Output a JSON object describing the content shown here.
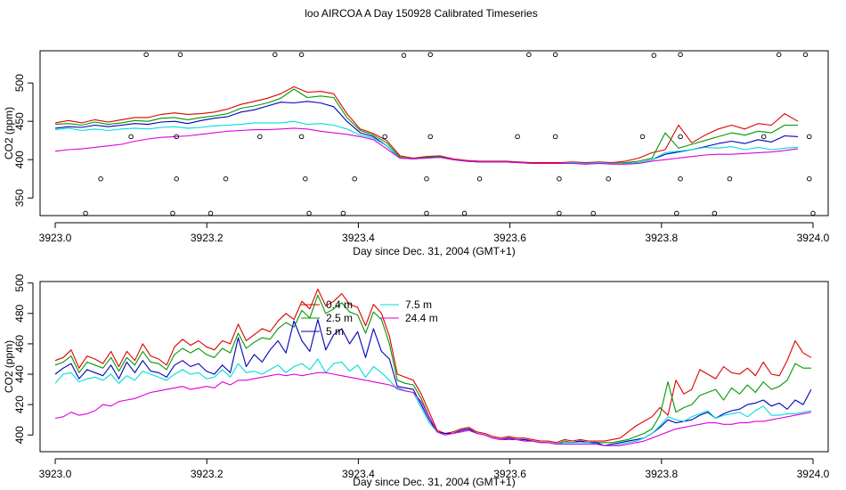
{
  "figure": {
    "title": "loo AIRCOA A  Day 150928  Calibrated Timeseries"
  },
  "chart_data": [
    {
      "type": "line",
      "xlabel": "Day since Dec. 31, 2004 (GMT+1)",
      "ylabel": "CO2 (ppm)",
      "xlim": [
        3922.98,
        3924.02
      ],
      "ylim": [
        327,
        542
      ],
      "xticks": [
        "3923.0",
        "3923.2",
        "3923.4",
        "3923.6",
        "3923.8",
        "3924.0"
      ],
      "xtick_values": [
        3923.0,
        3923.2,
        3923.4,
        3923.6,
        3923.8,
        3924.0
      ],
      "yticks": [
        "350",
        "400",
        "450",
        "500"
      ],
      "ytick_values": [
        350,
        400,
        450,
        500
      ],
      "grid": false,
      "legend": "none",
      "colors": [
        "#dd0000",
        "#009900",
        "#0000bb",
        "#00dddd",
        "#dd00dd"
      ],
      "series": [
        {
          "values": [
            448,
            451,
            448,
            452,
            449,
            452,
            455,
            455,
            459,
            461,
            459,
            460,
            462,
            466,
            472,
            476,
            480,
            486,
            495,
            488,
            489,
            486,
            460,
            440,
            434,
            425,
            405,
            402,
            404,
            405,
            401,
            399,
            398,
            398,
            398,
            397,
            396,
            396,
            396,
            397,
            396,
            397,
            396,
            398,
            402,
            409,
            413,
            445,
            422,
            432,
            440,
            445,
            440,
            447,
            445,
            460,
            450
          ]
        },
        {
          "values": [
            446,
            447,
            445,
            449,
            446,
            448,
            451,
            450,
            454,
            455,
            452,
            455,
            457,
            460,
            467,
            470,
            474,
            480,
            492,
            481,
            483,
            481,
            455,
            438,
            432,
            422,
            403,
            401,
            403,
            404,
            400,
            398,
            397,
            397,
            397,
            396,
            395,
            395,
            395,
            396,
            395,
            396,
            395,
            396,
            398,
            402,
            435,
            415,
            420,
            425,
            430,
            435,
            432,
            437,
            435,
            445,
            445
          ]
        },
        {
          "values": [
            441,
            443,
            442,
            445,
            443,
            445,
            447,
            446,
            449,
            450,
            447,
            451,
            454,
            456,
            462,
            465,
            470,
            475,
            474,
            476,
            474,
            469,
            450,
            435,
            430,
            418,
            402,
            401,
            402,
            403,
            400,
            398,
            397,
            397,
            397,
            396,
            395,
            395,
            395,
            396,
            395,
            396,
            395,
            395,
            396,
            400,
            407,
            410,
            413,
            417,
            421,
            424,
            421,
            426,
            423,
            431,
            430
          ]
        },
        {
          "values": [
            439,
            441,
            438,
            440,
            438,
            440,
            441,
            440,
            442,
            443,
            441,
            442,
            444,
            445,
            446,
            448,
            448,
            448,
            450,
            446,
            447,
            445,
            440,
            432,
            428,
            418,
            402,
            401,
            402,
            403,
            400,
            398,
            397,
            397,
            397,
            396,
            395,
            395,
            395,
            396,
            395,
            396,
            395,
            395,
            396,
            400,
            409,
            411,
            413,
            416,
            415,
            417,
            413,
            416,
            413,
            415,
            416
          ]
        },
        {
          "values": [
            411,
            413,
            414,
            416,
            418,
            420,
            424,
            427,
            429,
            430,
            431,
            433,
            435,
            437,
            438,
            439,
            439,
            440,
            441,
            440,
            437,
            435,
            433,
            430,
            426,
            414,
            402,
            401,
            402,
            403,
            400,
            398,
            397,
            397,
            397,
            396,
            395,
            395,
            395,
            395,
            394,
            395,
            394,
            394,
            395,
            398,
            400,
            402,
            404,
            406,
            407,
            407,
            408,
            409,
            410,
            412,
            414
          ]
        }
      ],
      "x_start": 3923.0,
      "x_step": 0.0175,
      "markers": [
        {
          "x": 3923.04,
          "y": 330
        },
        {
          "x": 3923.06,
          "y": 375
        },
        {
          "x": 3923.1,
          "y": 430
        },
        {
          "x": 3923.12,
          "y": 537
        },
        {
          "x": 3923.155,
          "y": 330
        },
        {
          "x": 3923.16,
          "y": 375
        },
        {
          "x": 3923.16,
          "y": 430
        },
        {
          "x": 3923.165,
          "y": 537
        },
        {
          "x": 3923.205,
          "y": 330
        },
        {
          "x": 3923.225,
          "y": 375
        },
        {
          "x": 3923.27,
          "y": 430
        },
        {
          "x": 3923.29,
          "y": 537
        },
        {
          "x": 3923.325,
          "y": 537
        },
        {
          "x": 3923.325,
          "y": 430
        },
        {
          "x": 3923.33,
          "y": 375
        },
        {
          "x": 3923.335,
          "y": 330
        },
        {
          "x": 3923.38,
          "y": 330
        },
        {
          "x": 3923.395,
          "y": 375
        },
        {
          "x": 3923.435,
          "y": 430
        },
        {
          "x": 3923.46,
          "y": 536
        },
        {
          "x": 3923.495,
          "y": 537
        },
        {
          "x": 3923.49,
          "y": 375
        },
        {
          "x": 3923.495,
          "y": 430
        },
        {
          "x": 3923.49,
          "y": 330
        },
        {
          "x": 3923.54,
          "y": 330
        },
        {
          "x": 3923.56,
          "y": 375
        },
        {
          "x": 3923.61,
          "y": 430
        },
        {
          "x": 3923.625,
          "y": 537
        },
        {
          "x": 3923.66,
          "y": 537
        },
        {
          "x": 3923.66,
          "y": 430
        },
        {
          "x": 3923.665,
          "y": 375
        },
        {
          "x": 3923.665,
          "y": 330
        },
        {
          "x": 3923.71,
          "y": 330
        },
        {
          "x": 3923.73,
          "y": 375
        },
        {
          "x": 3923.775,
          "y": 430
        },
        {
          "x": 3923.79,
          "y": 536
        },
        {
          "x": 3923.825,
          "y": 537
        },
        {
          "x": 3923.825,
          "y": 430
        },
        {
          "x": 3923.825,
          "y": 375
        },
        {
          "x": 3923.82,
          "y": 330
        },
        {
          "x": 3923.87,
          "y": 330
        },
        {
          "x": 3923.89,
          "y": 375
        },
        {
          "x": 3923.935,
          "y": 430
        },
        {
          "x": 3923.955,
          "y": 537
        },
        {
          "x": 3923.99,
          "y": 537
        },
        {
          "x": 3923.995,
          "y": 430
        },
        {
          "x": 3923.995,
          "y": 375
        },
        {
          "x": 3924.0,
          "y": 330
        }
      ]
    },
    {
      "type": "line",
      "xlabel": "Day since Dec. 31, 2004 (GMT+1)",
      "ylabel": "CO2 (ppm)",
      "xlim": [
        3922.98,
        3924.02
      ],
      "ylim": [
        389,
        501
      ],
      "xticks": [
        "3923.0",
        "3923.2",
        "3923.4",
        "3923.6",
        "3923.8",
        "3924.0"
      ],
      "xtick_values": [
        3923.0,
        3923.2,
        3923.4,
        3923.6,
        3923.8,
        3924.0
      ],
      "yticks": [
        "400",
        "420",
        "440",
        "460",
        "480",
        "500"
      ],
      "ytick_values": [
        400,
        420,
        440,
        460,
        480,
        500
      ],
      "grid": false,
      "legend": "top-center",
      "colors": [
        "#dd0000",
        "#009900",
        "#0000bb",
        "#00dddd",
        "#dd00dd"
      ],
      "series": [
        {
          "name": "0.4 m",
          "values": [
            449,
            451,
            456,
            444,
            452,
            450,
            447,
            455,
            445,
            455,
            449,
            460,
            452,
            450,
            446,
            458,
            463,
            459,
            462,
            458,
            456,
            462,
            460,
            473,
            462,
            466,
            470,
            468,
            475,
            480,
            476,
            488,
            483,
            496,
            485,
            488,
            493,
            486,
            484,
            472,
            486,
            480,
            465,
            440,
            438,
            436,
            427,
            415,
            403,
            401,
            402,
            404,
            405,
            402,
            401,
            399,
            398,
            399,
            398,
            398,
            397,
            396,
            396,
            395,
            397,
            396,
            397,
            396,
            396,
            396,
            397,
            398,
            402,
            406,
            409,
            412,
            418,
            413,
            436,
            427,
            430,
            443,
            440,
            437,
            445,
            441,
            440,
            444,
            439,
            448,
            440,
            439,
            449,
            462,
            454,
            451
          ]
        },
        {
          "name": "2.5 m",
          "values": [
            446,
            448,
            452,
            441,
            448,
            446,
            444,
            451,
            442,
            451,
            446,
            455,
            448,
            447,
            443,
            453,
            457,
            454,
            457,
            453,
            451,
            457,
            454,
            467,
            457,
            461,
            464,
            463,
            470,
            474,
            471,
            482,
            477,
            492,
            480,
            483,
            487,
            481,
            479,
            467,
            481,
            476,
            460,
            436,
            434,
            433,
            424,
            412,
            402,
            401,
            401,
            403,
            404,
            401,
            400,
            398,
            397,
            398,
            397,
            397,
            396,
            395,
            395,
            394,
            396,
            395,
            396,
            395,
            395,
            395,
            395,
            396,
            397,
            399,
            401,
            404,
            413,
            435,
            415,
            418,
            420,
            426,
            428,
            430,
            423,
            431,
            427,
            433,
            428,
            435,
            430,
            432,
            436,
            447,
            444,
            444
          ]
        },
        {
          "name": "5 m",
          "values": [
            440,
            444,
            447,
            437,
            443,
            441,
            439,
            446,
            437,
            448,
            441,
            449,
            442,
            441,
            438,
            446,
            449,
            445,
            447,
            442,
            440,
            446,
            441,
            464,
            445,
            453,
            448,
            456,
            462,
            454,
            475,
            462,
            455,
            476,
            456,
            466,
            470,
            460,
            468,
            451,
            470,
            455,
            450,
            432,
            431,
            430,
            420,
            410,
            402,
            401,
            401,
            403,
            404,
            401,
            400,
            398,
            397,
            398,
            397,
            397,
            396,
            395,
            395,
            394,
            395,
            395,
            396,
            395,
            395,
            393,
            394,
            395,
            396,
            397,
            398,
            401,
            405,
            410,
            408,
            409,
            410,
            413,
            415,
            411,
            414,
            416,
            417,
            420,
            421,
            423,
            419,
            421,
            417,
            423,
            420,
            430
          ]
        },
        {
          "name": "7.5 m",
          "values": [
            434,
            440,
            441,
            435,
            437,
            438,
            436,
            440,
            434,
            439,
            436,
            442,
            440,
            438,
            436,
            440,
            443,
            440,
            441,
            437,
            438,
            443,
            438,
            447,
            441,
            442,
            440,
            443,
            446,
            441,
            445,
            447,
            443,
            450,
            441,
            447,
            448,
            442,
            446,
            438,
            445,
            441,
            436,
            430,
            429,
            428,
            418,
            408,
            402,
            400,
            401,
            402,
            403,
            401,
            400,
            398,
            397,
            397,
            397,
            396,
            396,
            395,
            395,
            394,
            395,
            395,
            395,
            395,
            394,
            393,
            393,
            394,
            395,
            396,
            398,
            401,
            406,
            412,
            410,
            409,
            412,
            414,
            416,
            411,
            413,
            414,
            415,
            412,
            416,
            419,
            413,
            413,
            414,
            414,
            415,
            416
          ]
        },
        {
          "name": "24.4 m",
          "values": [
            411,
            412,
            415,
            413,
            414,
            416,
            420,
            419,
            422,
            423,
            424,
            426,
            428,
            429,
            430,
            431,
            432,
            430,
            431,
            432,
            431,
            435,
            433,
            436,
            436,
            437,
            438,
            439,
            440,
            439,
            440,
            439,
            440,
            441,
            441,
            440,
            439,
            438,
            437,
            436,
            435,
            434,
            433,
            431,
            429,
            428,
            422,
            412,
            402,
            400,
            401,
            402,
            403,
            401,
            400,
            398,
            397,
            397,
            397,
            396,
            396,
            395,
            395,
            394,
            394,
            394,
            394,
            394,
            394,
            393,
            393,
            393,
            394,
            395,
            396,
            398,
            400,
            402,
            404,
            405,
            406,
            407,
            408,
            408,
            407,
            407,
            408,
            408,
            409,
            409,
            410,
            411,
            412,
            413,
            414,
            415
          ]
        }
      ],
      "x_start": 3923.0,
      "x_step": 0.0105
    }
  ]
}
